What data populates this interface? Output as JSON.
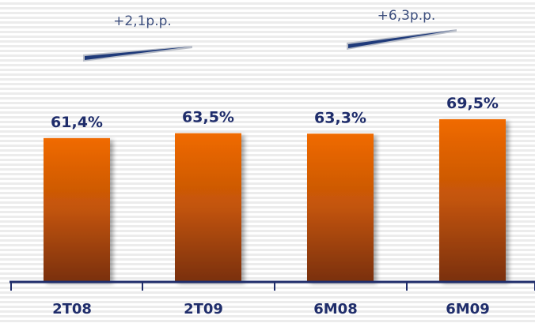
{
  "chart_data": {
    "type": "bar",
    "categories": [
      "2T08",
      "2T09",
      "6M08",
      "6M09"
    ],
    "values": [
      61.4,
      63.5,
      63.3,
      69.5
    ],
    "value_labels": [
      "61,4%",
      "63,5%",
      "63,3%",
      "69,5%"
    ],
    "ylim": [
      0,
      75
    ],
    "grid": false,
    "annotations": [
      {
        "text": "+2,1p.p.",
        "from": "2T08",
        "to": "2T09"
      },
      {
        "text": "+6,3p.p.",
        "from": "6M08",
        "to": "6M09"
      }
    ]
  },
  "colors": {
    "bar_top": "#f06a00",
    "bar_bottom": "#7a3008",
    "label": "#1f2d6b",
    "axis": "#1f2d6b",
    "arrow": "#1f3a7a",
    "background_stripe": "#ececec"
  }
}
